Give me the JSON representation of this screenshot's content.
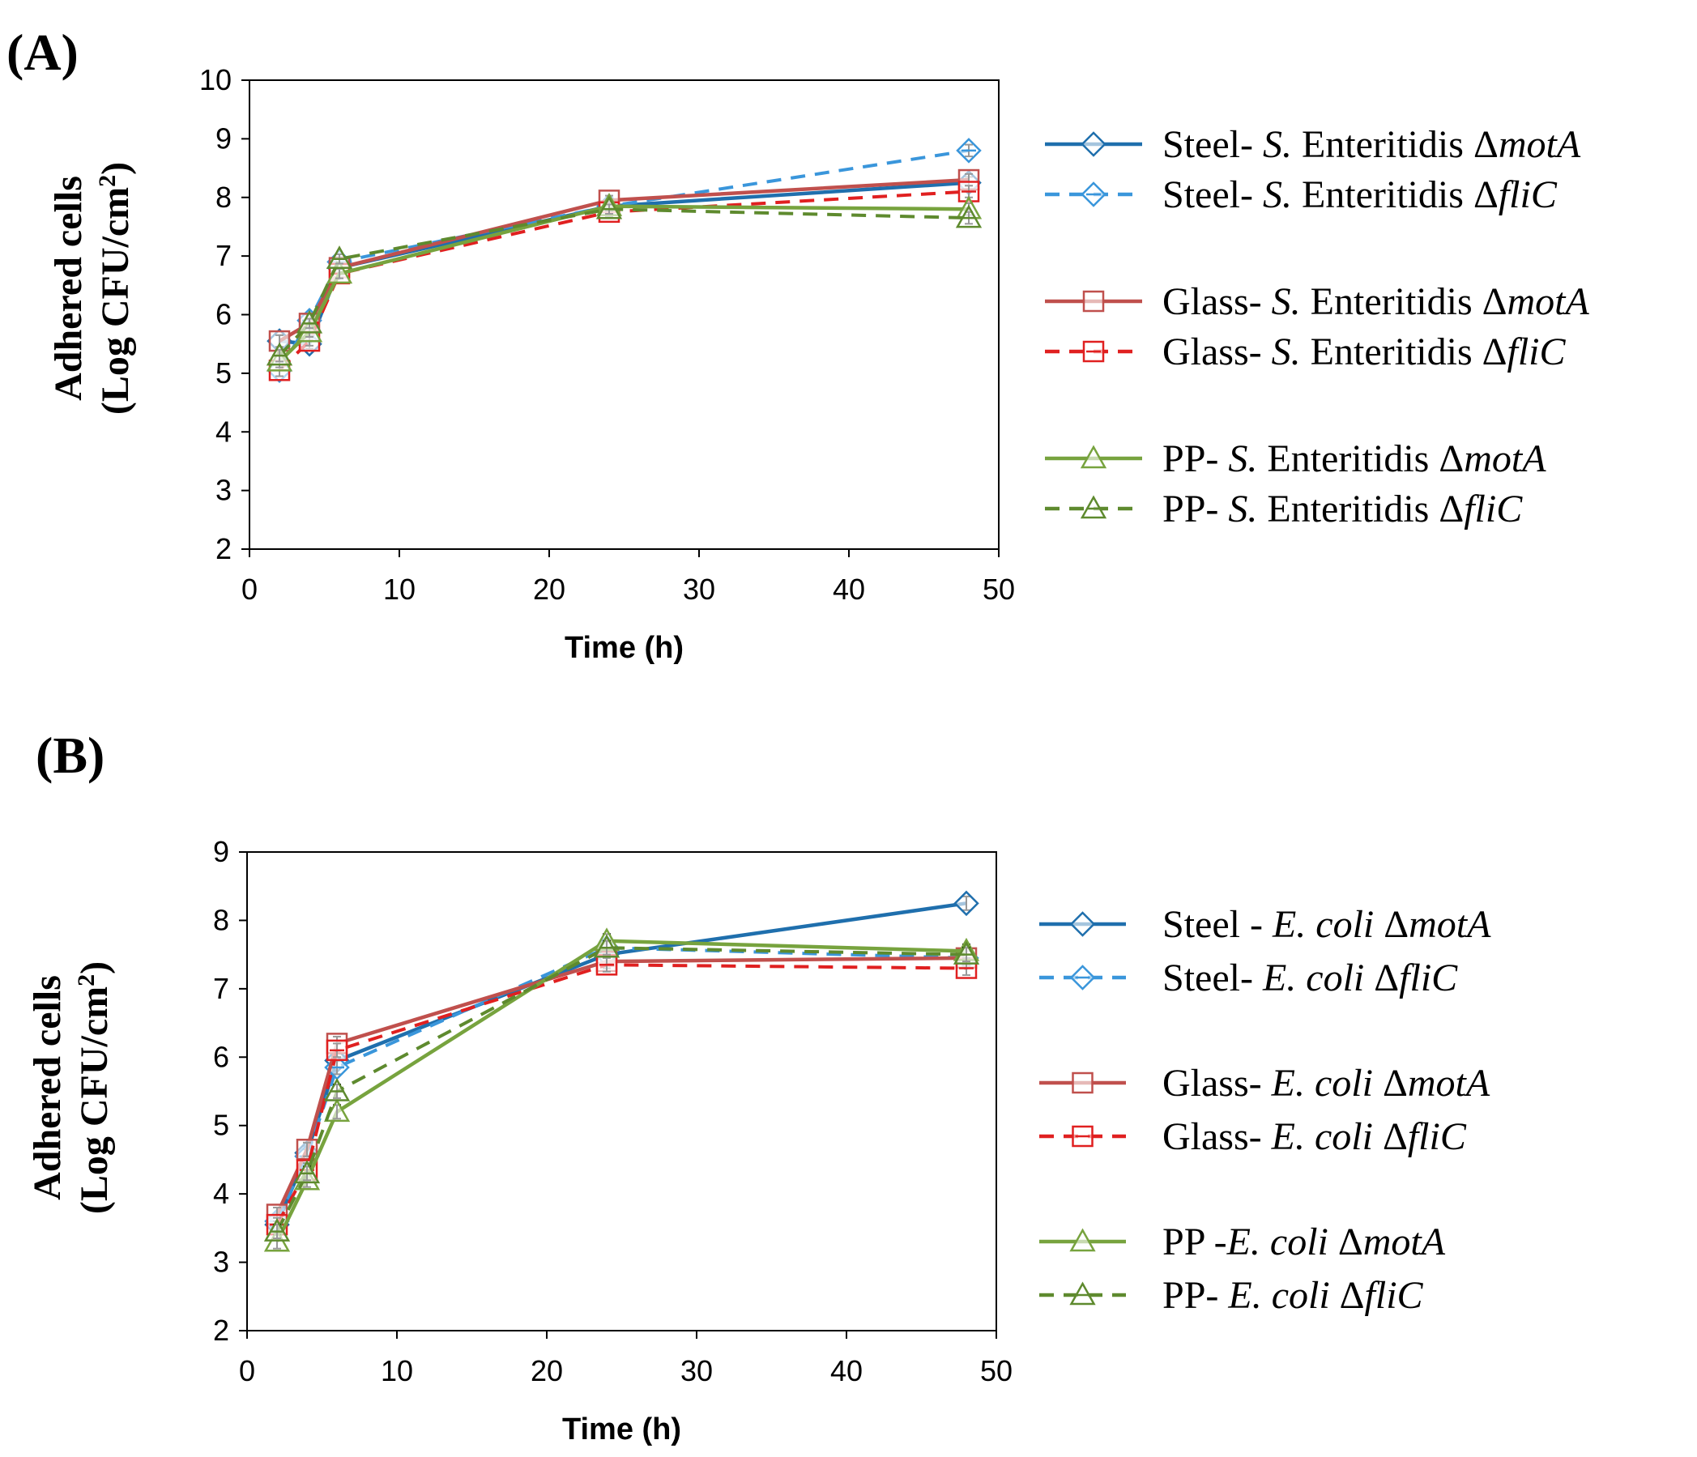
{
  "chart_data": [
    {
      "type": "line",
      "panel_label": "(A)",
      "xlabel": "Time (h)",
      "ylabel_line1": "Adhered cells",
      "ylabel_line2_pre": "(Log CFU/cm",
      "ylabel_sup": "2",
      "ylabel_line2_post": ")",
      "xlim": [
        0,
        50
      ],
      "ylim": [
        2,
        10
      ],
      "xticks": [
        0,
        10,
        20,
        30,
        40,
        50
      ],
      "yticks": [
        2,
        3,
        4,
        5,
        6,
        7,
        8,
        9,
        10
      ],
      "x": [
        2,
        4,
        6,
        24,
        48
      ],
      "series": [
        {
          "name_pre": "Steel- ",
          "name_it": "S.",
          "name_mid": " Enteritidis Δ",
          "name_it2": "motA",
          "color": "#1f6fad",
          "dash": false,
          "marker": "diamond",
          "values": [
            5.55,
            5.5,
            6.8,
            7.85,
            8.25
          ],
          "err": [
            0.1,
            0.08,
            0.08,
            0.08,
            0.1
          ],
          "group": 0
        },
        {
          "name_pre": "Steel- ",
          "name_it": "S.",
          "name_mid": " Enteritidis Δ",
          "name_it2": "fliC",
          "color": "#3a96db",
          "dash": true,
          "marker": "diamond-line",
          "values": [
            5.05,
            5.9,
            6.9,
            7.85,
            8.8
          ],
          "err": [
            0.1,
            0.1,
            0.08,
            0.08,
            0.1
          ],
          "group": 0
        },
        {
          "name_pre": "Glass- ",
          "name_it": "S.",
          "name_mid": " Enteritidis Δ",
          "name_it2": "motA",
          "color": "#c0504d",
          "dash": false,
          "marker": "square",
          "values": [
            5.55,
            5.85,
            6.8,
            7.95,
            8.3
          ],
          "err": [
            0.1,
            0.08,
            0.08,
            0.08,
            0.1
          ],
          "group": 1
        },
        {
          "name_pre": "Glass- ",
          "name_it": "S.",
          "name_mid": " Enteritidis Δ",
          "name_it2": "fliC",
          "color": "#e02020",
          "dash": true,
          "marker": "square-line",
          "values": [
            5.05,
            5.55,
            6.7,
            7.75,
            8.1
          ],
          "err": [
            0.1,
            0.08,
            0.08,
            0.08,
            0.1
          ],
          "group": 1
        },
        {
          "name_pre": "PP- ",
          "name_it": "S.",
          "name_mid": " Enteritidis Δ",
          "name_it2": "motA",
          "color": "#77a33e",
          "dash": false,
          "marker": "triangle",
          "values": [
            5.2,
            5.7,
            6.7,
            7.85,
            7.8
          ],
          "err": [
            0.1,
            0.08,
            0.08,
            0.08,
            0.1
          ],
          "group": 2
        },
        {
          "name_pre": "PP- ",
          "name_it": "S.",
          "name_mid": " Enteritidis Δ",
          "name_it2": "fliC",
          "color": "#5e8a2e",
          "dash": true,
          "marker": "triangle-line",
          "values": [
            5.3,
            5.85,
            6.95,
            7.8,
            7.65
          ],
          "err": [
            0.1,
            0.08,
            0.08,
            0.08,
            0.1
          ],
          "group": 2
        }
      ]
    },
    {
      "type": "line",
      "panel_label": "(B)",
      "xlabel": "Time (h)",
      "ylabel_line1": "Adhered cells",
      "ylabel_line2_pre": "(Log CFU/cm",
      "ylabel_sup": "2",
      "ylabel_line2_post": ")",
      "xlim": [
        0,
        50
      ],
      "ylim": [
        2,
        9
      ],
      "xticks": [
        0,
        10,
        20,
        30,
        40,
        50
      ],
      "yticks": [
        2,
        3,
        4,
        5,
        6,
        7,
        8,
        9
      ],
      "x": [
        2,
        4,
        6,
        24,
        48
      ],
      "series": [
        {
          "name_pre": "Steel - ",
          "name_it": "E. coli",
          "name_mid": " Δ",
          "name_it2": "motA",
          "color": "#1f6fad",
          "dash": false,
          "marker": "diamond",
          "values": [
            3.55,
            4.6,
            5.95,
            7.5,
            8.25
          ],
          "err": [
            0.1,
            0.1,
            0.1,
            0.1,
            0.1
          ],
          "group": 0
        },
        {
          "name_pre": "Steel- ",
          "name_it": "E. coli",
          "name_mid": " Δ",
          "name_it2": "fliC",
          "color": "#3a96db",
          "dash": true,
          "marker": "diamond-line",
          "values": [
            3.6,
            4.55,
            5.85,
            7.6,
            7.45
          ],
          "err": [
            0.1,
            0.1,
            0.1,
            0.1,
            0.1
          ],
          "group": 0
        },
        {
          "name_pre": "Glass- ",
          "name_it": "E. coli",
          "name_mid": " Δ",
          "name_it2": "motA",
          "color": "#c0504d",
          "dash": false,
          "marker": "square",
          "values": [
            3.7,
            4.65,
            6.2,
            7.4,
            7.45
          ],
          "err": [
            0.1,
            0.1,
            0.1,
            0.1,
            0.1
          ],
          "group": 1
        },
        {
          "name_pre": "Glass- ",
          "name_it": "E. coli",
          "name_mid": " Δ",
          "name_it2": "fliC",
          "color": "#e02020",
          "dash": true,
          "marker": "square-line",
          "values": [
            3.55,
            4.35,
            6.1,
            7.35,
            7.3
          ],
          "err": [
            0.1,
            0.1,
            0.1,
            0.1,
            0.1
          ],
          "group": 1
        },
        {
          "name_pre": "PP -",
          "name_it": "E. coli",
          "name_mid": " Δ",
          "name_it2": "motA",
          "color": "#77a33e",
          "dash": false,
          "marker": "triangle",
          "values": [
            3.3,
            4.2,
            5.2,
            7.7,
            7.55
          ],
          "err": [
            0.1,
            0.1,
            0.1,
            0.1,
            0.1
          ],
          "group": 2
        },
        {
          "name_pre": "PP- ",
          "name_it": "E. coli",
          "name_mid": " Δ",
          "name_it2": "fliC",
          "color": "#5e8a2e",
          "dash": true,
          "marker": "triangle-line",
          "values": [
            3.45,
            4.3,
            5.5,
            7.6,
            7.5
          ],
          "err": [
            0.1,
            0.1,
            0.1,
            0.1,
            0.1
          ],
          "group": 2
        }
      ]
    }
  ]
}
